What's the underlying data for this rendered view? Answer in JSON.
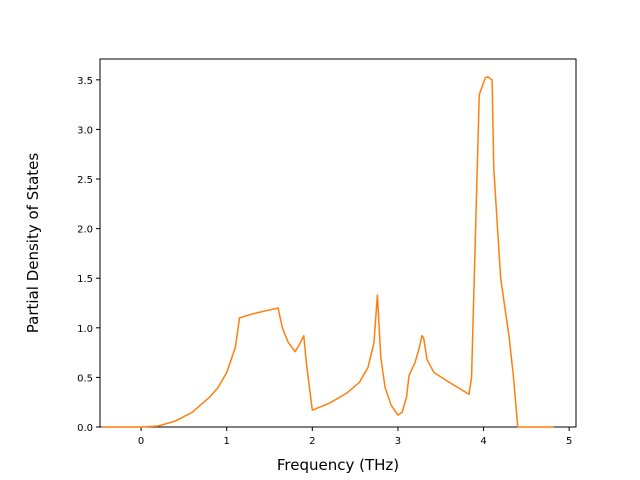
{
  "chart_data": {
    "type": "line",
    "xlabel": "Frequency (THz)",
    "ylabel": "Partial Density of States",
    "x": [
      -0.46,
      0,
      0.2,
      0.4,
      0.6,
      0.8,
      0.9,
      1.0,
      1.1,
      1.15,
      1.3,
      1.45,
      1.6,
      1.65,
      1.72,
      1.8,
      1.86,
      1.9,
      1.93,
      2.0,
      2.2,
      2.4,
      2.55,
      2.65,
      2.72,
      2.76,
      2.8,
      2.85,
      2.92,
      3.0,
      3.05,
      3.1,
      3.13,
      3.2,
      3.25,
      3.28,
      3.3,
      3.34,
      3.42,
      3.6,
      3.83,
      3.86,
      3.95,
      4.02,
      4.05,
      4.1,
      4.12,
      4.2,
      4.3,
      4.35,
      4.4,
      4.82
    ],
    "values": [
      0,
      0,
      0.01,
      0.06,
      0.15,
      0.3,
      0.4,
      0.55,
      0.8,
      1.1,
      1.14,
      1.17,
      1.2,
      1.0,
      0.85,
      0.76,
      0.85,
      0.92,
      0.65,
      0.17,
      0.24,
      0.34,
      0.45,
      0.6,
      0.85,
      1.33,
      0.7,
      0.4,
      0.22,
      0.12,
      0.15,
      0.3,
      0.52,
      0.65,
      0.8,
      0.92,
      0.9,
      0.68,
      0.55,
      0.45,
      0.33,
      0.5,
      3.35,
      3.52,
      3.53,
      3.5,
      2.6,
      1.5,
      0.9,
      0.5,
      0,
      0
    ],
    "color": "#ff7f0e",
    "xlim": [
      -0.48,
      5.08
    ],
    "xticks": [
      0,
      1,
      2,
      3,
      4,
      5
    ],
    "ylim": [
      0,
      3.71
    ],
    "yticks": [
      {
        "value": 0,
        "label": "0.0"
      },
      0.5,
      {
        "value": 1,
        "label": "1.0"
      },
      1.5,
      {
        "value": 2,
        "label": "2.0"
      },
      2.5,
      {
        "value": 3,
        "label": "3.0"
      },
      3.5
    ]
  }
}
